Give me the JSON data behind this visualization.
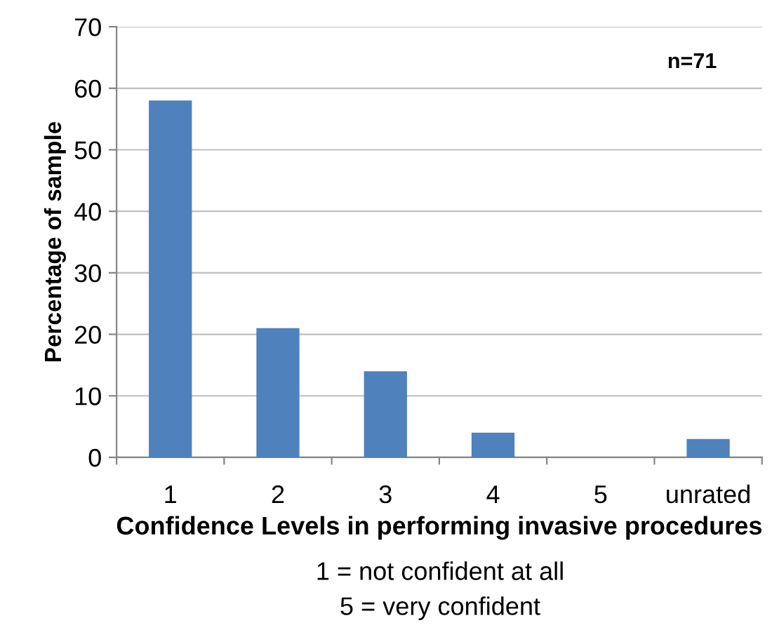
{
  "chart_data": {
    "type": "bar",
    "categories": [
      "1",
      "2",
      "3",
      "4",
      "5",
      "unrated"
    ],
    "values": [
      58,
      21,
      14,
      4,
      0,
      3
    ],
    "color": "#4f81bd",
    "ylabel": "Percentage of sample",
    "xlabel": "Confidence Levels in performing invasive procedures",
    "annotations": [
      "n=71",
      "1 = not confident at all",
      "5 = very confident"
    ],
    "ylim": [
      0,
      70
    ],
    "yticks": [
      0,
      10,
      20,
      30,
      40,
      50,
      60,
      70
    ],
    "grid": "y",
    "legend": false
  }
}
